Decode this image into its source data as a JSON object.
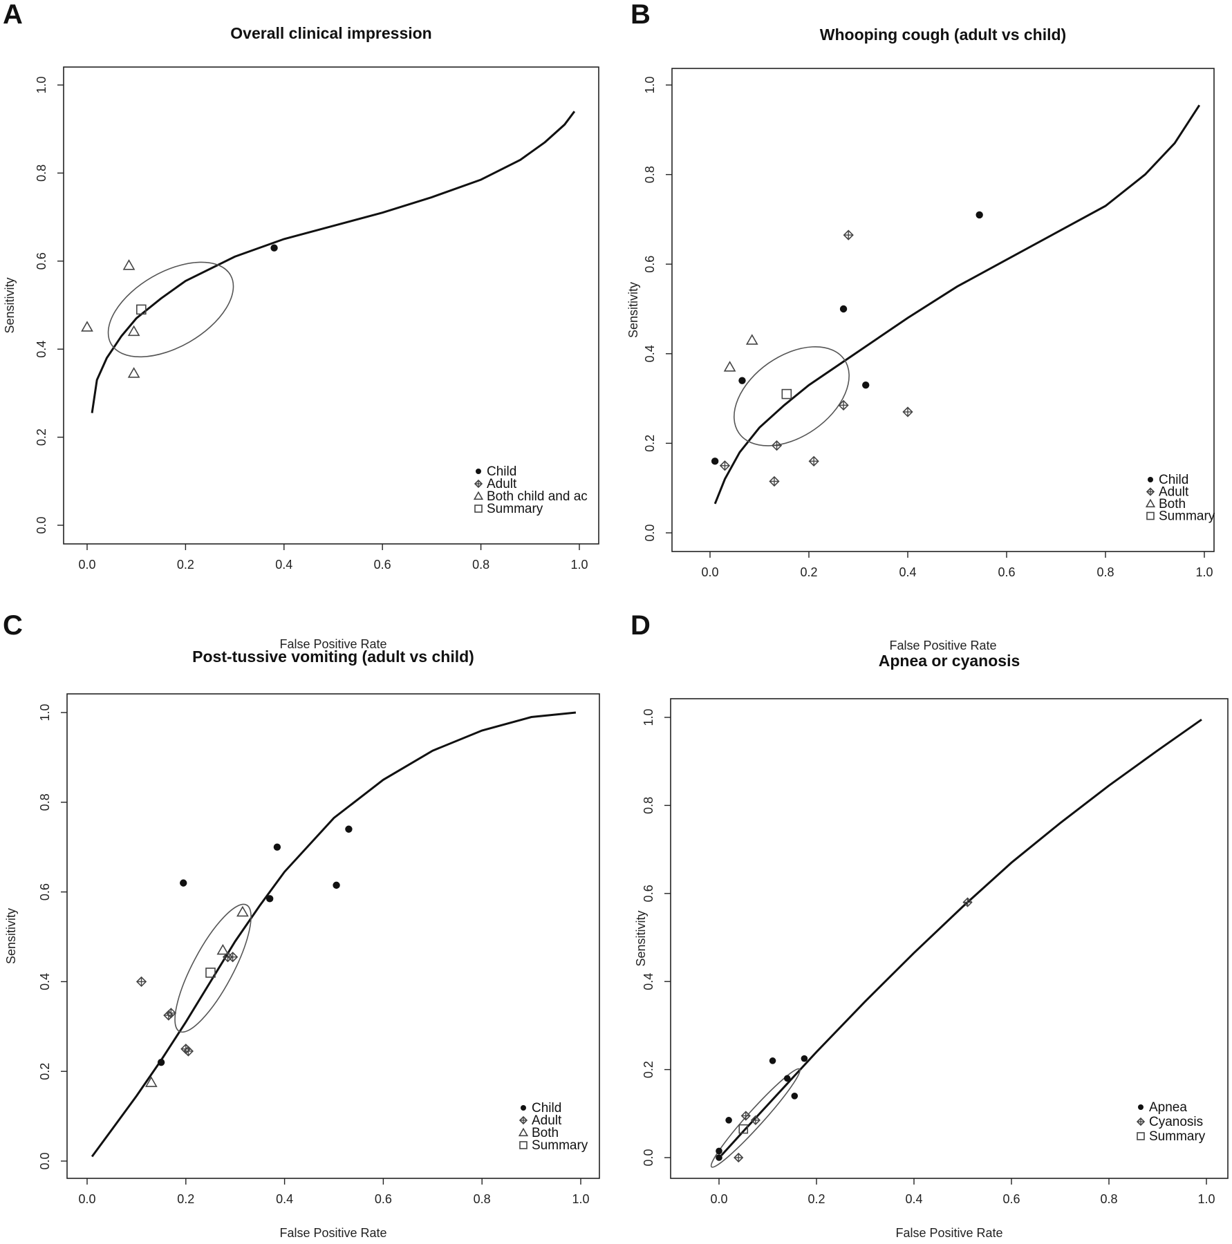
{
  "chart_data": [
    {
      "type": "scatter",
      "panel": "A",
      "title": "Overall clinical impression",
      "xlabel": "",
      "ylabel": "Sensitivity",
      "xlim": [
        0,
        1
      ],
      "ylim": [
        0,
        1
      ],
      "xticks": [
        "0.0",
        "0.2",
        "0.4",
        "0.6",
        "0.8",
        "1.0"
      ],
      "yticks": [
        "0.0",
        "0.2",
        "0.4",
        "0.6",
        "0.8",
        "1.0"
      ],
      "legend_position": "bottom-right",
      "legend": [
        {
          "label": "Child",
          "marker": "dot"
        },
        {
          "label": "Adult",
          "marker": "diamond"
        },
        {
          "label": "Both child and ac",
          "marker": "triangle"
        },
        {
          "label": "Summary",
          "marker": "square"
        }
      ],
      "series": [
        {
          "name": "Child",
          "marker": "dot",
          "points": [
            [
              0.38,
              0.63
            ]
          ]
        },
        {
          "name": "Adult",
          "marker": "diamond",
          "points": []
        },
        {
          "name": "Both child and ac",
          "marker": "triangle",
          "points": [
            [
              0.0,
              0.45
            ],
            [
              0.085,
              0.59
            ],
            [
              0.095,
              0.44
            ],
            [
              0.095,
              0.345
            ]
          ]
        },
        {
          "name": "Summary",
          "marker": "square",
          "points": [
            [
              0.11,
              0.49
            ]
          ]
        }
      ],
      "curve": [
        [
          0.01,
          0.255
        ],
        [
          0.02,
          0.33
        ],
        [
          0.04,
          0.38
        ],
        [
          0.07,
          0.43
        ],
        [
          0.1,
          0.47
        ],
        [
          0.15,
          0.515
        ],
        [
          0.2,
          0.555
        ],
        [
          0.3,
          0.61
        ],
        [
          0.4,
          0.65
        ],
        [
          0.5,
          0.68
        ],
        [
          0.6,
          0.71
        ],
        [
          0.7,
          0.745
        ],
        [
          0.8,
          0.785
        ],
        [
          0.88,
          0.83
        ],
        [
          0.93,
          0.87
        ],
        [
          0.97,
          0.91
        ],
        [
          0.99,
          0.94
        ]
      ],
      "ellipse": {
        "cx": 0.17,
        "cy": 0.49,
        "rx": 0.14,
        "ry": 0.085,
        "angle": 30
      }
    },
    {
      "type": "scatter",
      "panel": "B",
      "title": "Whooping cough (adult vs child)",
      "xlabel": "False Positive Rate",
      "ylabel": "Sensitivity",
      "xlim": [
        0,
        1
      ],
      "ylim": [
        0,
        1
      ],
      "xticks": [
        "0.0",
        "0.2",
        "0.4",
        "0.6",
        "0.8",
        "1.0"
      ],
      "yticks": [
        "0.0",
        "0.2",
        "0.4",
        "0.6",
        "0.8",
        "1.0"
      ],
      "legend_position": "bottom-right",
      "legend": [
        {
          "label": "Child",
          "marker": "dot"
        },
        {
          "label": "Adult",
          "marker": "diamond"
        },
        {
          "label": "Both",
          "marker": "triangle"
        },
        {
          "label": "Summary",
          "marker": "square"
        }
      ],
      "series": [
        {
          "name": "Child",
          "marker": "dot",
          "points": [
            [
              0.01,
              0.16
            ],
            [
              0.065,
              0.34
            ],
            [
              0.27,
              0.5
            ],
            [
              0.315,
              0.33
            ],
            [
              0.545,
              0.71
            ]
          ]
        },
        {
          "name": "Adult",
          "marker": "diamond",
          "points": [
            [
              0.03,
              0.15
            ],
            [
              0.13,
              0.115
            ],
            [
              0.135,
              0.195
            ],
            [
              0.21,
              0.16
            ],
            [
              0.27,
              0.285
            ],
            [
              0.28,
              0.665
            ],
            [
              0.4,
              0.27
            ]
          ]
        },
        {
          "name": "Both",
          "marker": "triangle",
          "points": [
            [
              0.04,
              0.37
            ],
            [
              0.085,
              0.43
            ]
          ]
        },
        {
          "name": "Summary",
          "marker": "square",
          "points": [
            [
              0.155,
              0.31
            ]
          ]
        }
      ],
      "curve": [
        [
          0.01,
          0.065
        ],
        [
          0.03,
          0.12
        ],
        [
          0.06,
          0.18
        ],
        [
          0.1,
          0.235
        ],
        [
          0.15,
          0.285
        ],
        [
          0.2,
          0.33
        ],
        [
          0.3,
          0.405
        ],
        [
          0.4,
          0.48
        ],
        [
          0.5,
          0.55
        ],
        [
          0.6,
          0.61
        ],
        [
          0.7,
          0.67
        ],
        [
          0.8,
          0.73
        ],
        [
          0.88,
          0.8
        ],
        [
          0.94,
          0.87
        ],
        [
          0.99,
          0.955
        ]
      ],
      "ellipse": {
        "cx": 0.165,
        "cy": 0.305,
        "rx": 0.13,
        "ry": 0.09,
        "angle": 35
      }
    },
    {
      "type": "scatter",
      "panel": "C",
      "title": "Post-tussive vomiting (adult vs child)",
      "xlabel": "False Positive Rate",
      "ylabel": "Sensitivity",
      "xlim": [
        0,
        1
      ],
      "ylim": [
        0,
        1
      ],
      "xticks": [
        "0.0",
        "0.2",
        "0.4",
        "0.6",
        "0.8",
        "1.0"
      ],
      "yticks": [
        "0.0",
        "0.2",
        "0.4",
        "0.6",
        "0.8",
        "1.0"
      ],
      "legend_position": "bottom-right",
      "legend": [
        {
          "label": "Child",
          "marker": "dot"
        },
        {
          "label": "Adult",
          "marker": "diamond"
        },
        {
          "label": "Both",
          "marker": "triangle"
        },
        {
          "label": "Summary",
          "marker": "square"
        }
      ],
      "series": [
        {
          "name": "Child",
          "marker": "dot",
          "points": [
            [
              0.15,
              0.22
            ],
            [
              0.195,
              0.62
            ],
            [
              0.37,
              0.585
            ],
            [
              0.385,
              0.7
            ],
            [
              0.505,
              0.615
            ],
            [
              0.53,
              0.74
            ]
          ]
        },
        {
          "name": "Adult",
          "marker": "diamond",
          "points": [
            [
              0.11,
              0.4
            ],
            [
              0.165,
              0.325
            ],
            [
              0.17,
              0.33
            ],
            [
              0.2,
              0.25
            ],
            [
              0.205,
              0.245
            ],
            [
              0.285,
              0.455
            ],
            [
              0.295,
              0.455
            ]
          ]
        },
        {
          "name": "Both",
          "marker": "triangle",
          "points": [
            [
              0.13,
              0.175
            ],
            [
              0.275,
              0.47
            ],
            [
              0.315,
              0.555
            ]
          ]
        },
        {
          "name": "Summary",
          "marker": "square",
          "points": [
            [
              0.25,
              0.42
            ]
          ]
        }
      ],
      "curve": [
        [
          0.01,
          0.01
        ],
        [
          0.05,
          0.07
        ],
        [
          0.1,
          0.145
        ],
        [
          0.15,
          0.225
        ],
        [
          0.2,
          0.31
        ],
        [
          0.25,
          0.4
        ],
        [
          0.3,
          0.49
        ],
        [
          0.35,
          0.57
        ],
        [
          0.4,
          0.645
        ],
        [
          0.5,
          0.765
        ],
        [
          0.6,
          0.85
        ],
        [
          0.7,
          0.915
        ],
        [
          0.8,
          0.96
        ],
        [
          0.9,
          0.99
        ],
        [
          0.99,
          1.0
        ]
      ],
      "ellipse": {
        "cx": 0.255,
        "cy": 0.43,
        "rx": 0.145,
        "ry": 0.045,
        "angle": 62
      }
    },
    {
      "type": "scatter",
      "panel": "D",
      "title": "Apnea or cyanosis",
      "xlabel": "False Positive Rate",
      "ylabel": "Sensitivity",
      "xlim": [
        0,
        1
      ],
      "ylim": [
        0,
        1
      ],
      "xticks": [
        "0.0",
        "0.2",
        "0.4",
        "0.6",
        "0.8",
        "1.0"
      ],
      "yticks": [
        "0.0",
        "0.2",
        "0.4",
        "0.6",
        "0.8",
        "1.0"
      ],
      "legend_position": "bottom-right",
      "legend": [
        {
          "label": "Apnea",
          "marker": "dot"
        },
        {
          "label": "Cyanosis",
          "marker": "diamond"
        },
        {
          "label": "Summary",
          "marker": "square"
        }
      ],
      "series": [
        {
          "name": "Apnea",
          "marker": "dot",
          "points": [
            [
              0.0,
              0.0
            ],
            [
              0.0,
              0.015
            ],
            [
              0.02,
              0.085
            ],
            [
              0.11,
              0.22
            ],
            [
              0.14,
              0.18
            ],
            [
              0.155,
              0.14
            ],
            [
              0.175,
              0.225
            ]
          ]
        },
        {
          "name": "Cyanosis",
          "marker": "diamond",
          "points": [
            [
              0.04,
              0.0
            ],
            [
              0.055,
              0.095
            ],
            [
              0.075,
              0.085
            ],
            [
              0.51,
              0.58
            ]
          ]
        },
        {
          "name": "Summary",
          "marker": "square",
          "points": [
            [
              0.05,
              0.065
            ]
          ]
        }
      ],
      "curve": [
        [
          0.005,
          0.005
        ],
        [
          0.05,
          0.06
        ],
        [
          0.1,
          0.12
        ],
        [
          0.2,
          0.24
        ],
        [
          0.3,
          0.355
        ],
        [
          0.4,
          0.465
        ],
        [
          0.5,
          0.57
        ],
        [
          0.6,
          0.67
        ],
        [
          0.7,
          0.76
        ],
        [
          0.8,
          0.845
        ],
        [
          0.9,
          0.925
        ],
        [
          0.99,
          0.995
        ]
      ],
      "ellipse": {
        "cx": 0.075,
        "cy": 0.09,
        "rx": 0.135,
        "ry": 0.018,
        "angle": 48
      }
    }
  ]
}
